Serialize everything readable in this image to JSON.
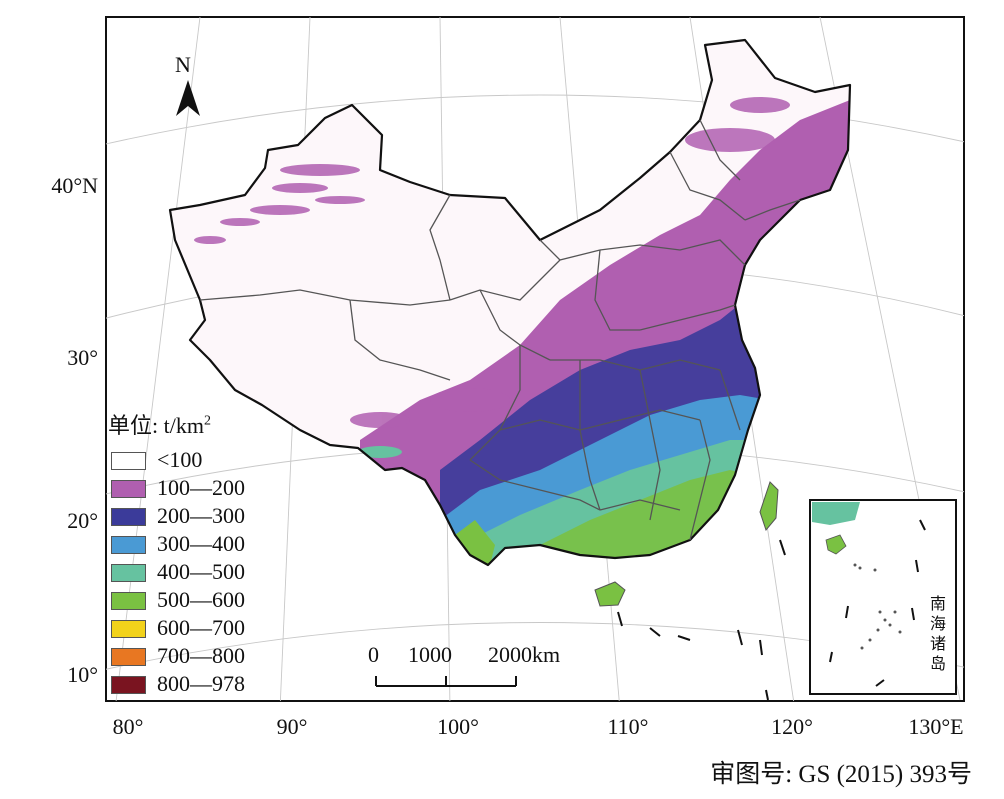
{
  "map": {
    "north_label": "N",
    "lat_labels": [
      "40°N",
      "30°",
      "20°",
      "10°"
    ],
    "lon_labels": [
      "80°",
      "90°",
      "100°",
      "110°",
      "120°",
      "130°E"
    ]
  },
  "legend": {
    "title_prefix": "单位: t/km",
    "title_sup": "2",
    "items": [
      {
        "label": "<100",
        "color": "#ffffff"
      },
      {
        "label": "100—200",
        "color": "#b05fb0"
      },
      {
        "label": "200—300",
        "color": "#3b3b9a"
      },
      {
        "label": "300—400",
        "color": "#4a9ad4"
      },
      {
        "label": "400—500",
        "color": "#66c2a0"
      },
      {
        "label": "500—600",
        "color": "#7ac142"
      },
      {
        "label": "600—700",
        "color": "#f2d21b"
      },
      {
        "label": "700—800",
        "color": "#e87722"
      },
      {
        "label": "800—978",
        "color": "#7a1420"
      }
    ]
  },
  "scale_bar": {
    "labels": [
      "0",
      "1000",
      "2000km"
    ]
  },
  "inset": {
    "label_chars": [
      "南",
      "海",
      "诸",
      "岛"
    ]
  },
  "credit": "审图号: GS (2015) 393号"
}
